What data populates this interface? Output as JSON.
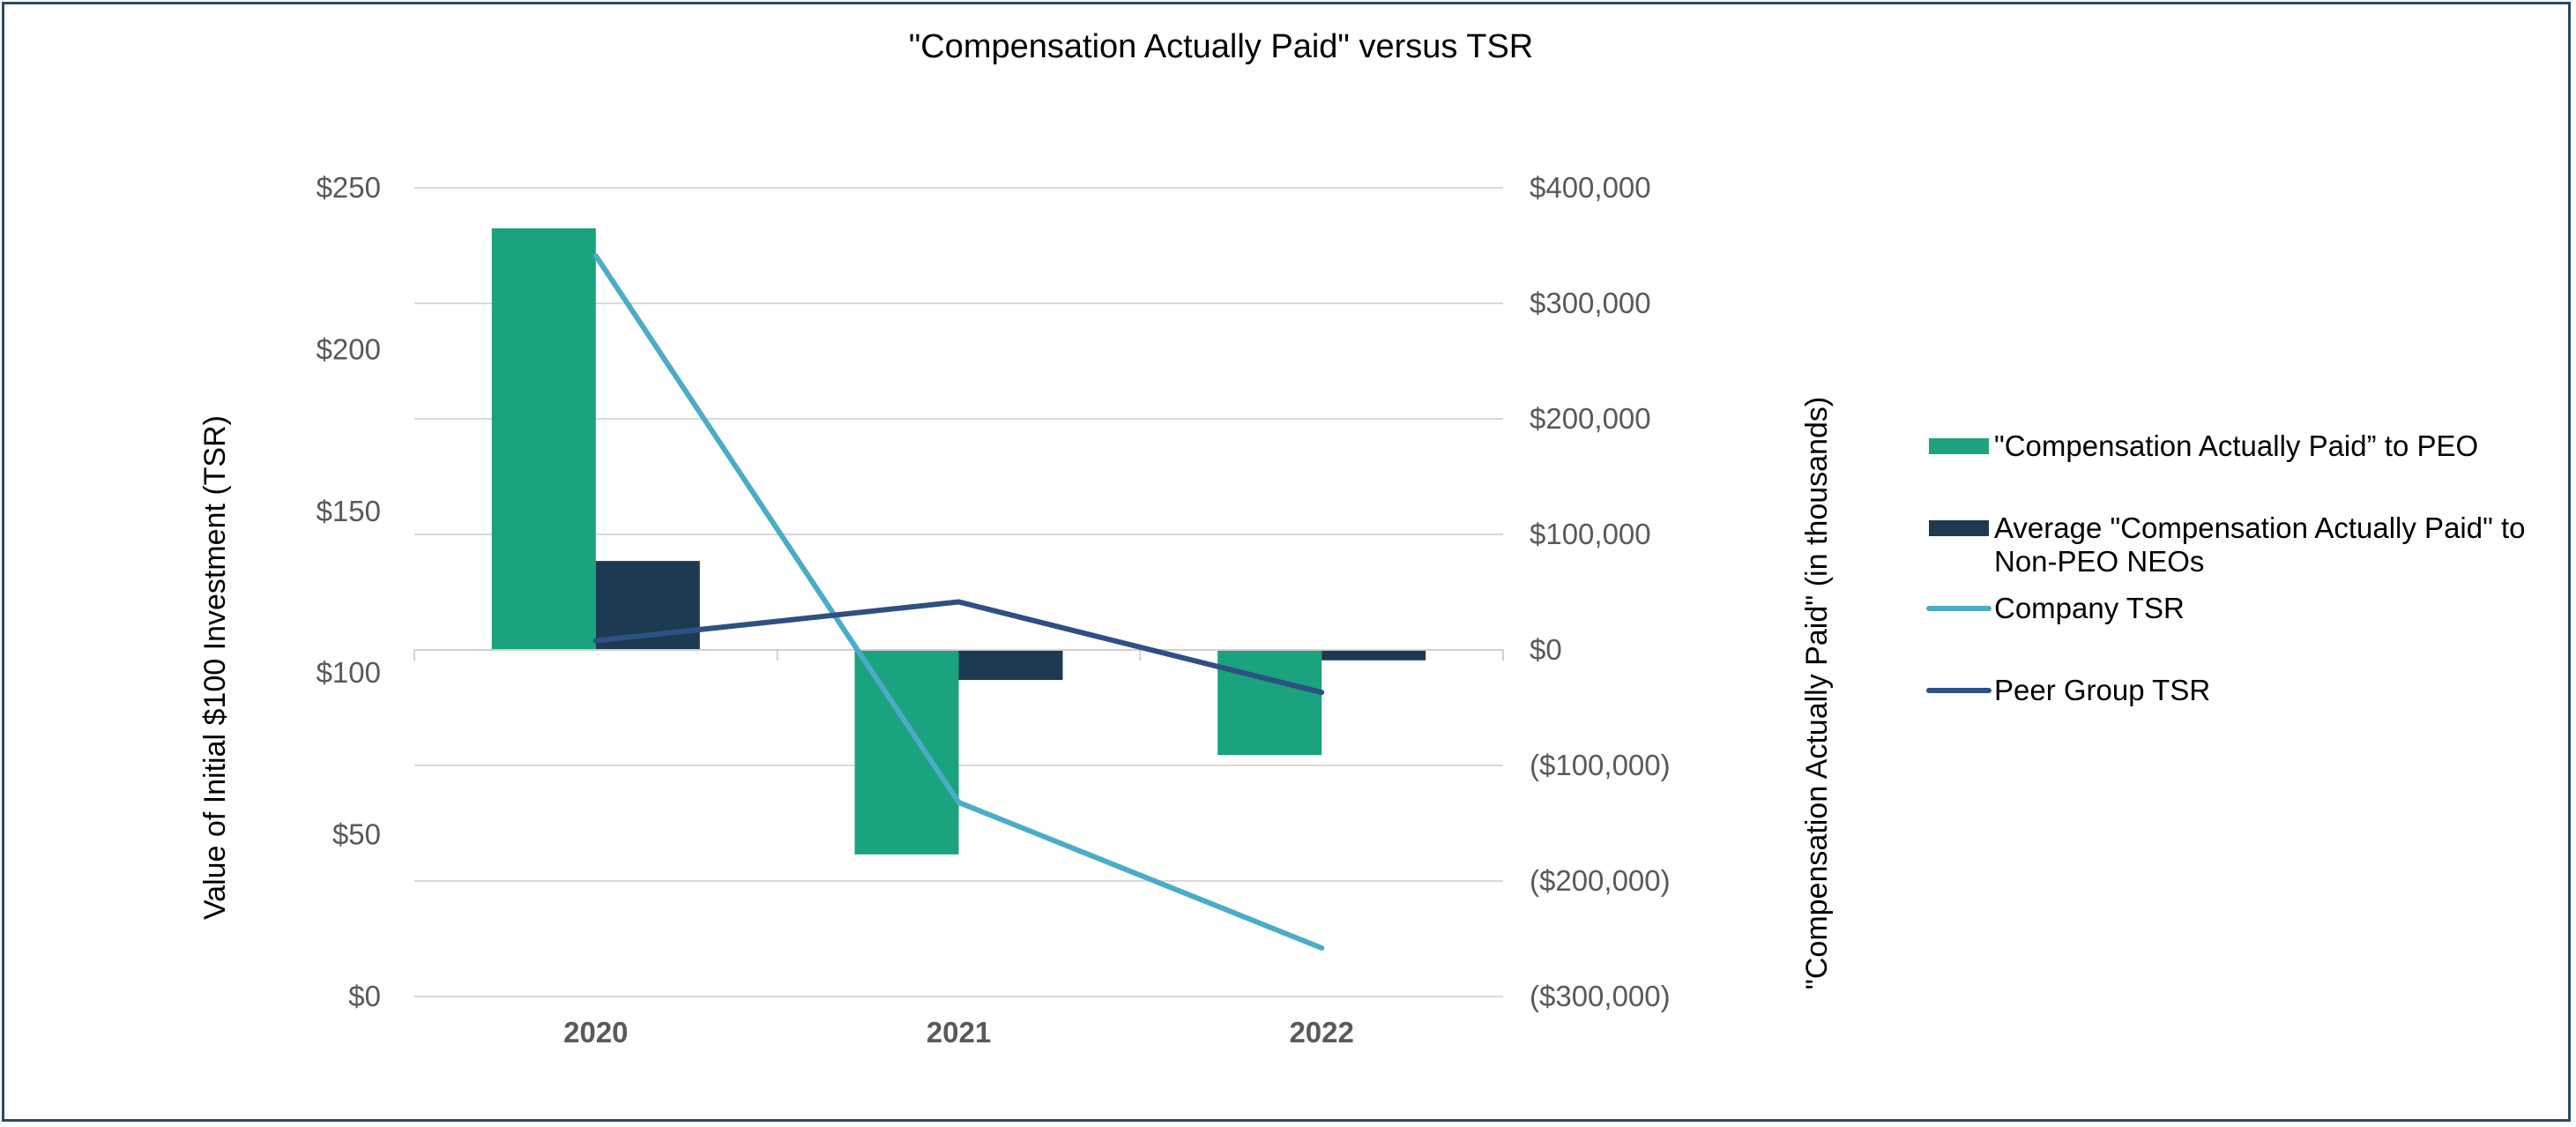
{
  "chart_data": {
    "type": "bar",
    "title": "\"Compensation Actually Paid\" versus TSR",
    "categories": [
      "2020",
      "2021",
      "2022"
    ],
    "ylabel_left": "Value of Initial $100 Investment (TSR)",
    "ylabel_right": "\"Compensation Actually Paid\" (in thousands)",
    "ylim_left": [
      0,
      250
    ],
    "ylim_right": [
      -300000,
      400000
    ],
    "left_ticks": [
      {
        "value": 0,
        "label": "$0"
      },
      {
        "value": 50,
        "label": "$50"
      },
      {
        "value": 100,
        "label": "$100"
      },
      {
        "value": 150,
        "label": "$150"
      },
      {
        "value": 200,
        "label": "$200"
      },
      {
        "value": 250,
        "label": "$250"
      }
    ],
    "right_ticks": [
      {
        "value": -300000,
        "label": "($300,000)"
      },
      {
        "value": -200000,
        "label": "($200,000)"
      },
      {
        "value": -100000,
        "label": "($100,000)"
      },
      {
        "value": 0,
        "label": "$0"
      },
      {
        "value": 100000,
        "label": "$100,000"
      },
      {
        "value": 200000,
        "label": "$200,000"
      },
      {
        "value": 300000,
        "label": "$300,000"
      },
      {
        "value": 400000,
        "label": "$400,000"
      }
    ],
    "bar_series": [
      {
        "name": "\"Compensation Actually Paid” to PEO",
        "axis": "right",
        "color": "#1aa37e",
        "values": [
          365000,
          -177000,
          -91000
        ]
      },
      {
        "name": "Average \"Compensation Actually Paid\" to Non-PEO NEOs",
        "axis": "right",
        "color": "#1c3a52",
        "values": [
          77000,
          -26000,
          -9000
        ]
      }
    ],
    "line_series": [
      {
        "name": "Company TSR",
        "axis": "left",
        "color": "#4bacc6",
        "values": [
          229,
          60,
          15
        ]
      },
      {
        "name": "Peer Group TSR",
        "axis": "left",
        "color": "#2e5082",
        "values": [
          110,
          122,
          94
        ]
      }
    ],
    "legend": [
      {
        "label": "\"Compensation Actually Paid” to PEO",
        "kind": "bar",
        "color": "#1aa37e"
      },
      {
        "label": "Average \"Compensation Actually Paid\" to",
        "label2": "Non-PEO NEOs",
        "kind": "bar",
        "color": "#1c3a52"
      },
      {
        "label": "Company TSR",
        "kind": "line",
        "color": "#4bacc6"
      },
      {
        "label": "Peer Group TSR",
        "kind": "line",
        "color": "#2e5082"
      }
    ]
  }
}
